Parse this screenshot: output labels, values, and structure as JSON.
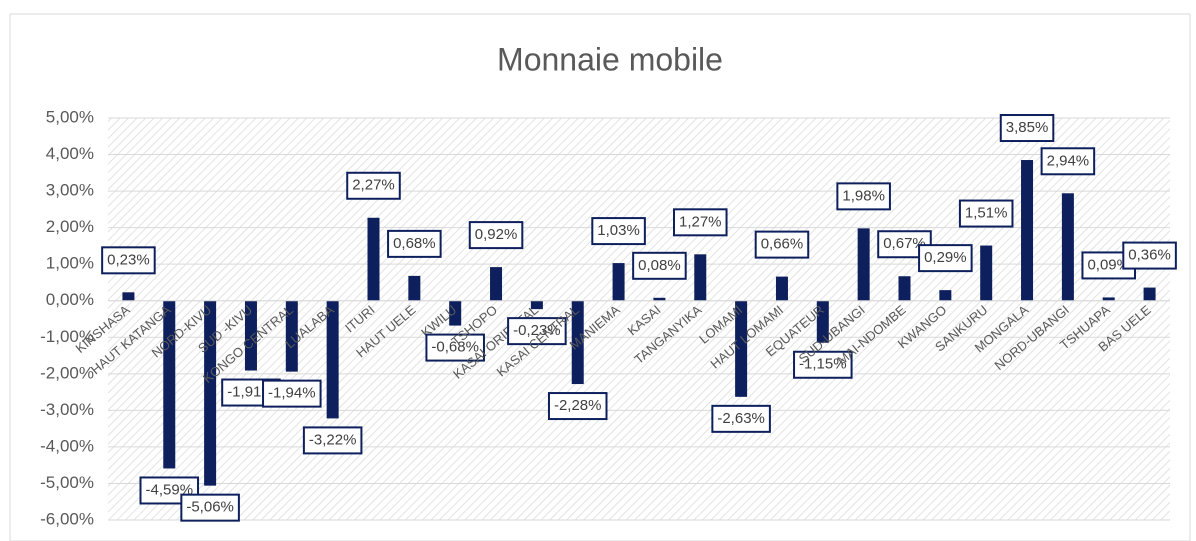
{
  "chart_data": {
    "type": "bar",
    "title": "Monnaie mobile",
    "categories": [
      "KINSHASA",
      "HAUT KATANGA",
      "NORD-KIVU",
      "SUD -KIVU",
      "KONGO CENTRAL",
      "LUALABA",
      "ITURI",
      "HAUT UELE",
      "KWILU",
      "TSHOPO",
      "KASAI ORIENTAL",
      "KASAI CENTRAL",
      "MANIEMA",
      "KASAI",
      "TANGANYIKA",
      "LOMAMI",
      "HAUT LOMAMI",
      "EQUATEUR",
      "SUD-UBANGI",
      "MAI-NDOMBE",
      "KWANGO",
      "SANKURU",
      "MONGALA",
      "NORD-UBANGI",
      "TSHUAPA",
      "BAS UELE"
    ],
    "values": [
      0.23,
      -4.59,
      -5.06,
      -1.91,
      -1.94,
      -3.22,
      2.27,
      0.68,
      -0.68,
      0.92,
      -0.23,
      -2.28,
      1.03,
      0.08,
      1.27,
      -2.63,
      0.66,
      -1.15,
      1.98,
      0.67,
      0.29,
      1.51,
      3.85,
      2.94,
      0.09,
      0.36
    ],
    "value_labels": [
      "0,23%",
      "-4,59%",
      "-5,06%",
      "-1,91%",
      "-1,94%",
      "-3,22%",
      "2,27%",
      "0,68%",
      "-0,68%",
      "0,92%",
      "-0,23%",
      "-2,28%",
      "1,03%",
      "0,08%",
      "1,27%",
      "-2,63%",
      "0,66%",
      "-1,15%",
      "1,98%",
      "0,67%",
      "0,29%",
      "1,51%",
      "3,85%",
      "2,94%",
      "0,09%",
      "0,36%"
    ],
    "color": "#0d1f5c",
    "ylim": [
      -6,
      5
    ],
    "yticks": [
      {
        "value": -6,
        "label": "-6,00%"
      },
      {
        "value": -5,
        "label": "-5,00%"
      },
      {
        "value": -4,
        "label": "-4,00%"
      },
      {
        "value": -3,
        "label": "-3,00%"
      },
      {
        "value": -2,
        "label": "-2,00%"
      },
      {
        "value": -1,
        "label": "-1,00%"
      },
      {
        "value": 0,
        "label": "0,00%"
      },
      {
        "value": 1,
        "label": "1,00%"
      },
      {
        "value": 2,
        "label": "2,00%"
      },
      {
        "value": 3,
        "label": "3,00%"
      },
      {
        "value": 4,
        "label": "4,00%"
      },
      {
        "value": 5,
        "label": "5,00%"
      }
    ],
    "grid": true
  }
}
